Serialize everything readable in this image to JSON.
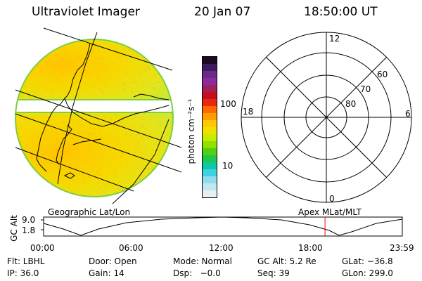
{
  "header": {
    "instrument": "Ultraviolet Imager",
    "date": "20 Jan 07",
    "time": "18:50:00 UT"
  },
  "colorbar": {
    "label": "photon cm⁻²s⁻¹",
    "ticks": [
      {
        "label": "100",
        "value": 100
      },
      {
        "label": "10",
        "value": 10
      }
    ],
    "colors": [
      "#1a0a26",
      "#3b1c5c",
      "#6a2a8c",
      "#8e2aa0",
      "#a0205a",
      "#c4101c",
      "#e82810",
      "#ff6a00",
      "#ff9c00",
      "#ffc800",
      "#f0e000",
      "#c8ec00",
      "#90e000",
      "#50d010",
      "#20c848",
      "#10c8a8",
      "#40d0e0",
      "#90dcec",
      "#c0e8f0",
      "#e6f0f4"
    ]
  },
  "polar_grid": {
    "mlt_labels": [
      {
        "label": "12"
      },
      {
        "label": "18"
      },
      {
        "label": "6"
      },
      {
        "label": "0"
      }
    ],
    "mlat_labels": [
      {
        "label": "60"
      },
      {
        "label": "70"
      },
      {
        "label": "80"
      }
    ]
  },
  "timeline": {
    "left_title": "Geographic Lat/Lon",
    "right_title": "Apex MLat/MLT",
    "ylabel": "GC Alt",
    "y_ticks": [
      "9.0",
      "1.8"
    ],
    "x_ticks": [
      "00:00",
      "06:00",
      "12:00",
      "18:00",
      "23:59"
    ],
    "current_time_hours": 18.83,
    "marker_color": "#ff0000"
  },
  "info": {
    "row1": [
      "Flt: LBHL",
      "Door: Open",
      "Mode: Normal",
      "GC Alt: 5.2 Re",
      "GLat: −36.8"
    ],
    "row2": [
      "IP: 36.0",
      "Gain: 14",
      "Dsp:   −0.0",
      "Seq: 39",
      "GLon: 299.0"
    ]
  }
}
